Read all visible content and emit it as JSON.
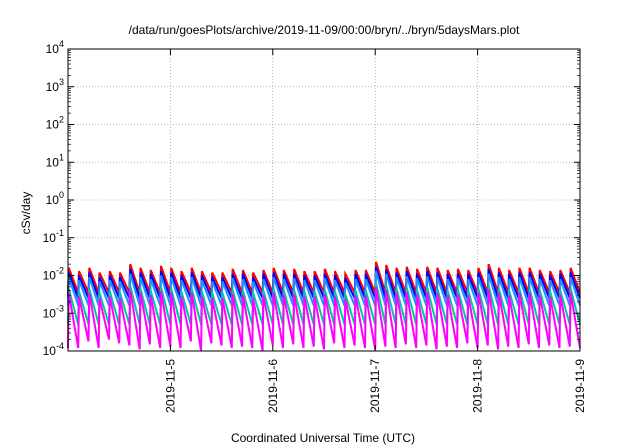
{
  "chart_data": {
    "type": "line",
    "title": "/data/run/goesPlots/archive/2019-11-09/00:00/bryn/../bryn/5daysMars.plot",
    "xlabel": "Coordinated Universal Time (UTC)",
    "ylabel": "cSv/day",
    "xscale": "time",
    "yscale": "log",
    "xlim": [
      "2019-11-04T00:00",
      "2019-11-09T00:00"
    ],
    "ylim": [
      0.0001,
      10000
    ],
    "grid": true,
    "x_ticks": [
      "2019-11-5",
      "2019-11-6",
      "2019-11-7",
      "2019-11-8",
      "2019-11-9"
    ],
    "y_ticks": [
      {
        "base": "10",
        "exp": "-4"
      },
      {
        "base": "10",
        "exp": "-3"
      },
      {
        "base": "10",
        "exp": "-2"
      },
      {
        "base": "10",
        "exp": "-1"
      },
      {
        "base": "10",
        "exp": "0"
      },
      {
        "base": "10",
        "exp": "1"
      },
      {
        "base": "10",
        "exp": "2"
      },
      {
        "base": "10",
        "exp": "3"
      },
      {
        "base": "10",
        "exp": "4"
      }
    ],
    "sawtooth_period_hours": 2.4,
    "series": [
      {
        "color": "#ff0000",
        "peak_values": [
          0.016,
          0.013,
          0.016,
          0.012,
          0.013,
          0.012,
          0.02,
          0.016,
          0.014,
          0.018,
          0.016,
          0.013,
          0.016,
          0.013,
          0.012,
          0.012,
          0.015,
          0.014,
          0.012,
          0.014,
          0.016,
          0.014,
          0.015,
          0.013,
          0.013,
          0.015,
          0.013,
          0.011,
          0.014,
          0.014,
          0.023,
          0.019,
          0.016,
          0.017,
          0.015,
          0.017,
          0.016,
          0.014,
          0.015,
          0.014,
          0.016,
          0.02,
          0.016,
          0.014,
          0.016,
          0.016,
          0.014,
          0.013,
          0.014,
          0.016
        ],
        "trough_values": [
          0.0035,
          0.0035,
          0.0035,
          0.0035,
          0.0035,
          0.0035,
          0.0035,
          0.0035,
          0.0035,
          0.0035,
          0.0035,
          0.0035,
          0.0035,
          0.0035,
          0.0035,
          0.0035,
          0.0035,
          0.0035,
          0.0035,
          0.0035,
          0.0035,
          0.0035,
          0.0035,
          0.0035,
          0.0035,
          0.0035,
          0.0035,
          0.0035,
          0.0035,
          0.0035,
          0.0035,
          0.0035,
          0.0035,
          0.0035,
          0.0035,
          0.0035,
          0.0035,
          0.0035,
          0.0035,
          0.0035,
          0.0035,
          0.0035,
          0.0035,
          0.0035,
          0.0035,
          0.0035,
          0.0035,
          0.0035,
          0.0035,
          0.0035
        ]
      },
      {
        "color": "#0000ff",
        "peak_values": [
          0.012,
          0.01,
          0.012,
          0.009,
          0.01,
          0.009,
          0.015,
          0.012,
          0.011,
          0.013,
          0.012,
          0.01,
          0.012,
          0.01,
          0.009,
          0.009,
          0.011,
          0.011,
          0.009,
          0.011,
          0.012,
          0.011,
          0.011,
          0.01,
          0.01,
          0.011,
          0.01,
          0.0085,
          0.011,
          0.011,
          0.017,
          0.014,
          0.012,
          0.013,
          0.011,
          0.013,
          0.012,
          0.011,
          0.011,
          0.011,
          0.012,
          0.015,
          0.012,
          0.011,
          0.012,
          0.012,
          0.011,
          0.01,
          0.011,
          0.012
        ],
        "trough_values": [
          0.0025,
          0.0025,
          0.0025,
          0.0025,
          0.0025,
          0.0025,
          0.0025,
          0.0025,
          0.0025,
          0.0025,
          0.0025,
          0.0025,
          0.0025,
          0.0025,
          0.0025,
          0.0025,
          0.0025,
          0.0025,
          0.0025,
          0.0025,
          0.0025,
          0.0025,
          0.0025,
          0.0025,
          0.0025,
          0.0025,
          0.0025,
          0.0025,
          0.0025,
          0.0025,
          0.0025,
          0.0025,
          0.0025,
          0.0025,
          0.0025,
          0.0025,
          0.0025,
          0.0025,
          0.0025,
          0.0025,
          0.0025,
          0.0025,
          0.0025,
          0.0025,
          0.0025,
          0.0025,
          0.0025,
          0.0025,
          0.0025,
          0.0025
        ]
      },
      {
        "color": "#1e90ff",
        "peak_values": [
          0.009,
          0.0075,
          0.009,
          0.007,
          0.0075,
          0.007,
          0.011,
          0.009,
          0.008,
          0.01,
          0.009,
          0.0075,
          0.009,
          0.0075,
          0.007,
          0.007,
          0.0085,
          0.008,
          0.007,
          0.008,
          0.009,
          0.008,
          0.0085,
          0.0075,
          0.0075,
          0.0085,
          0.0075,
          0.0065,
          0.008,
          0.008,
          0.013,
          0.011,
          0.009,
          0.0095,
          0.0085,
          0.0095,
          0.009,
          0.008,
          0.0085,
          0.008,
          0.009,
          0.011,
          0.009,
          0.008,
          0.009,
          0.009,
          0.008,
          0.0075,
          0.008,
          0.009
        ],
        "trough_values": [
          0.0016,
          0.0016,
          0.0016,
          0.0016,
          0.0016,
          0.0016,
          0.0016,
          0.0016,
          0.0016,
          0.0016,
          0.0016,
          0.0016,
          0.0016,
          0.0016,
          0.0016,
          0.0016,
          0.0016,
          0.0016,
          0.0016,
          0.0016,
          0.0016,
          0.0016,
          0.0016,
          0.0016,
          0.0016,
          0.0016,
          0.0016,
          0.0016,
          0.0016,
          0.0016,
          0.0016,
          0.0016,
          0.0016,
          0.0016,
          0.0016,
          0.0016,
          0.0016,
          0.0016,
          0.0016,
          0.0016,
          0.0016,
          0.0016,
          0.0016,
          0.0016,
          0.0016,
          0.0016,
          0.0016,
          0.0016,
          0.0016,
          0.0016
        ]
      },
      {
        "color": "#00c8a0",
        "peak_values": [
          0.0045,
          0.0038,
          0.0045,
          0.0035,
          0.0038,
          0.0035,
          0.0055,
          0.0045,
          0.004,
          0.005,
          0.0045,
          0.0038,
          0.0045,
          0.0038,
          0.0035,
          0.0035,
          0.0042,
          0.004,
          0.0035,
          0.004,
          0.0045,
          0.004,
          0.0042,
          0.0038,
          0.0038,
          0.0042,
          0.0038,
          0.0032,
          0.004,
          0.004,
          0.0065,
          0.0055,
          0.0045,
          0.0048,
          0.0042,
          0.0048,
          0.0045,
          0.004,
          0.0042,
          0.004,
          0.0045,
          0.0055,
          0.0045,
          0.004,
          0.0045,
          0.0045,
          0.004,
          0.0038,
          0.004,
          0.0045
        ],
        "trough_values": [
          0.0005,
          0.0005,
          0.0005,
          0.0005,
          0.0005,
          0.0005,
          0.0005,
          0.0005,
          0.0005,
          0.0005,
          0.0005,
          0.0005,
          0.0005,
          0.0005,
          0.0005,
          0.0005,
          0.0005,
          0.0005,
          0.0005,
          0.0005,
          0.0005,
          0.0005,
          0.0005,
          0.0005,
          0.0005,
          0.0005,
          0.0005,
          0.0005,
          0.0005,
          0.0005,
          0.0005,
          0.0005,
          0.0005,
          0.0005,
          0.0005,
          0.0005,
          0.0005,
          0.0005,
          0.0005,
          0.0005,
          0.0005,
          0.0005,
          0.0005,
          0.0005,
          0.0005,
          0.0005,
          0.0005,
          0.0005,
          0.0005,
          0.0005
        ]
      },
      {
        "color": "#ff00ff",
        "peak_values": [
          0.0035,
          0.0028,
          0.0035,
          0.0025,
          0.0028,
          0.0025,
          0.0042,
          0.0035,
          0.003,
          0.0038,
          0.0035,
          0.0028,
          0.0035,
          0.0028,
          0.0025,
          0.0025,
          0.0032,
          0.003,
          0.0025,
          0.003,
          0.0035,
          0.003,
          0.0032,
          0.0028,
          0.0028,
          0.0032,
          0.0028,
          0.0024,
          0.003,
          0.003,
          0.005,
          0.0042,
          0.0035,
          0.0036,
          0.0032,
          0.0036,
          0.0035,
          0.003,
          0.0032,
          0.003,
          0.0035,
          0.0042,
          0.0035,
          0.003,
          0.0035,
          0.0035,
          0.003,
          0.0028,
          0.003,
          0.0035
        ],
        "trough_values": [
          0.00012,
          0.00018,
          0.00012,
          0.0002,
          0.00016,
          0.00014,
          0.00011,
          0.00015,
          0.00012,
          0.00013,
          0.00012,
          0.00018,
          0.0001,
          0.00016,
          0.00014,
          0.00012,
          0.00013,
          0.00012,
          0.0001,
          0.00014,
          0.00012,
          0.00015,
          0.00012,
          0.00013,
          0.00011,
          0.00016,
          0.00012,
          0.00014,
          0.00012,
          0.00011,
          0.00013,
          0.00012,
          0.00015,
          0.00012,
          0.00014,
          0.00011,
          0.00013,
          0.00012,
          0.00016,
          0.00012,
          0.00014,
          0.00011,
          0.00013,
          0.00012,
          0.00015,
          0.00012,
          0.00014,
          0.00012,
          0.00013,
          0.00012
        ]
      }
    ]
  }
}
